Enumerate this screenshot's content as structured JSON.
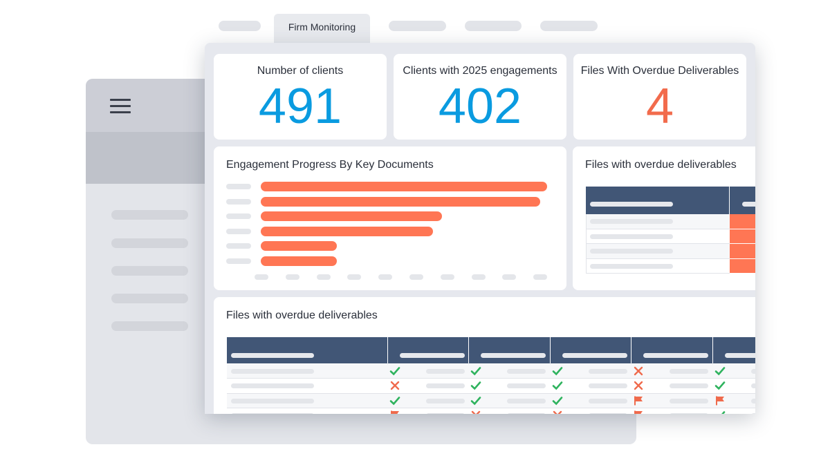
{
  "tabs": {
    "active_label": "Firm Monitoring"
  },
  "kpis": {
    "clients": {
      "label": "Number of clients",
      "value": "491",
      "color": "#0a9be0"
    },
    "engagements": {
      "label": "Clients with 2025 engagements",
      "value": "402",
      "color": "#0a9be0"
    },
    "overdue": {
      "label": "Files With Overdue Deliverables",
      "value": "4",
      "color": "#f26b4c"
    }
  },
  "progress_chart": {
    "title": "Engagement Progress By Key Documents",
    "bar_color": "#ff7654",
    "bar_fractions": [
      1.0,
      0.975,
      0.633,
      0.602,
      0.265,
      0.265
    ]
  },
  "overdue_small": {
    "title": "Files with overdue deliverables"
  },
  "overdue_table": {
    "title": "Files with overdue deliverables",
    "rows": [
      [
        "check-icon",
        "check-icon",
        "check-icon",
        "cross-icon",
        "check-icon"
      ],
      [
        "cross-icon",
        "check-icon",
        "check-icon",
        "cross-icon",
        "check-icon"
      ],
      [
        "check-icon",
        "check-icon",
        "check-icon",
        "flag-icon",
        "flag-icon"
      ],
      [
        "flag-icon",
        "cross-icon",
        "cross-icon",
        "flag-icon",
        "check-icon"
      ]
    ]
  },
  "status_colors": {
    "check": "#2fb35e",
    "cross": "#ef6a4c",
    "flag": "#ef6a4c"
  }
}
